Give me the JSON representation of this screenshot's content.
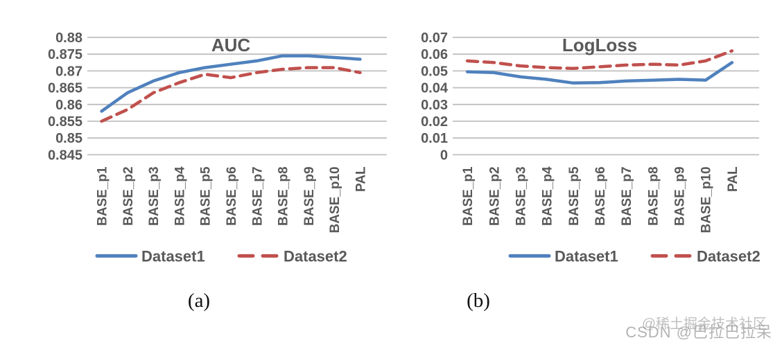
{
  "captions": {
    "a": "(a)",
    "b": "(b)"
  },
  "watermark": {
    "line1": "@稀土掘金技术社区",
    "line2": "CSDN @巴拉巴拉呆"
  },
  "colors": {
    "series1": "#4f81bd",
    "series2": "#c0504d",
    "grid": "#bfbfbf",
    "axis_text": "#595959"
  },
  "chart_data": [
    {
      "type": "line",
      "title": "AUC",
      "categories": [
        "BASE_p1",
        "BASE_p2",
        "BASE_p3",
        "BASE_p4",
        "BASE_p5",
        "BASE_p6",
        "BASE_p7",
        "BASE_p8",
        "BASE_p9",
        "BASE_p10",
        "PAL"
      ],
      "series": [
        {
          "name": "Dataset1",
          "style": "solid",
          "color": "#4f81bd",
          "values": [
            0.858,
            0.8635,
            0.867,
            0.8695,
            0.871,
            0.872,
            0.873,
            0.8745,
            0.8745,
            0.874,
            0.8735
          ]
        },
        {
          "name": "Dataset2",
          "style": "dashed",
          "color": "#c0504d",
          "values": [
            0.855,
            0.8585,
            0.8635,
            0.8665,
            0.869,
            0.868,
            0.8695,
            0.8705,
            0.871,
            0.871,
            0.8695
          ]
        }
      ],
      "ylim": [
        0.845,
        0.88
      ],
      "ytick_labels": [
        "0.88",
        "0.875",
        "0.87",
        "0.865",
        "0.86",
        "0.855",
        "0.85",
        "0.845"
      ],
      "xlabel": "",
      "ylabel": "",
      "grid": true,
      "legend_position": "bottom"
    },
    {
      "type": "line",
      "title": "LogLoss",
      "categories": [
        "BASE_p1",
        "BASE_p2",
        "BASE_p3",
        "BASE_p4",
        "BASE_p5",
        "BASE_p6",
        "BASE_p7",
        "BASE_p8",
        "BASE_p9",
        "BASE_p10",
        "PAL"
      ],
      "series": [
        {
          "name": "Dataset1",
          "style": "solid",
          "color": "#4f81bd",
          "values": [
            0.0495,
            0.049,
            0.0465,
            0.045,
            0.0428,
            0.043,
            0.044,
            0.0445,
            0.045,
            0.0445,
            0.055
          ]
        },
        {
          "name": "Dataset2",
          "style": "dashed",
          "color": "#c0504d",
          "values": [
            0.056,
            0.055,
            0.053,
            0.052,
            0.0515,
            0.0525,
            0.0535,
            0.054,
            0.0535,
            0.056,
            0.062
          ]
        }
      ],
      "ylim": [
        0,
        0.07
      ],
      "ytick_labels": [
        "0.07",
        "0.06",
        "0.05",
        "0.04",
        "0.03",
        "0.02",
        "0.01",
        "0"
      ],
      "xlabel": "",
      "ylabel": "",
      "grid": true,
      "legend_position": "bottom"
    }
  ]
}
